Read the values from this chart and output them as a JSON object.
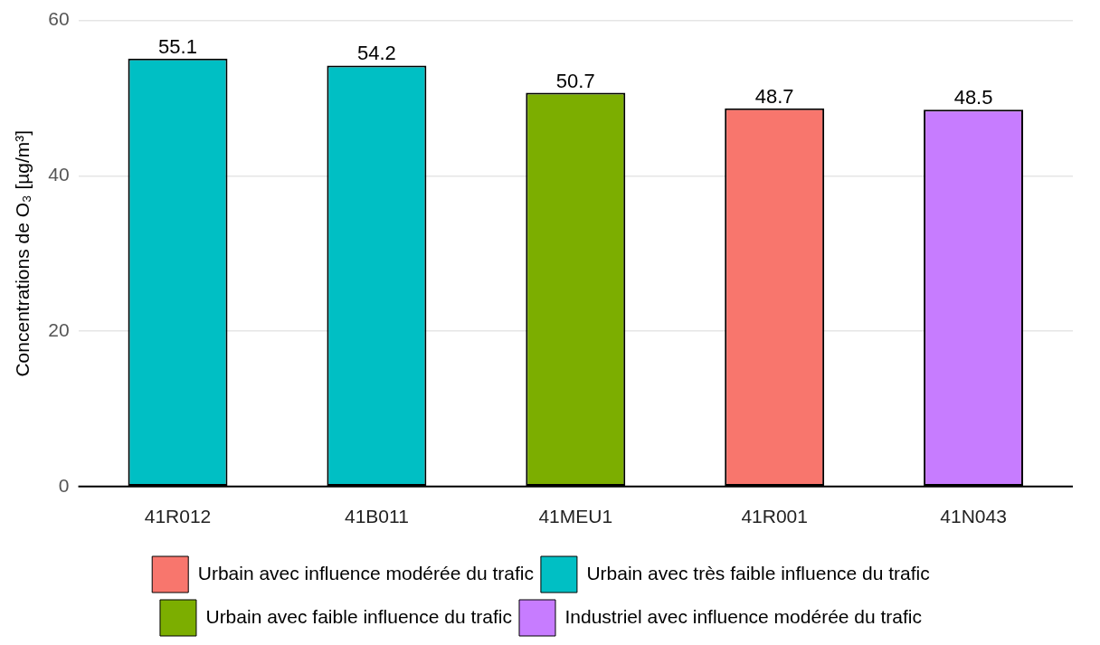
{
  "chart_data": {
    "type": "bar",
    "ylabel": "Concentrations de O₃ [µg/m³]",
    "categories": [
      "41R012",
      "41B011",
      "41MEU1",
      "41R001",
      "41N043"
    ],
    "stacked": true,
    "series": [
      {
        "name": "Urbain avec influence modérée du trafic",
        "color": "#f8766d",
        "values": [
          null,
          null,
          null,
          48.7,
          null
        ]
      },
      {
        "name": "Urbain avec très faible influence du trafic",
        "color": "#00bfc4",
        "values": [
          55.1,
          54.2,
          null,
          null,
          null
        ]
      },
      {
        "name": "Urbain avec faible influence du trafic",
        "color": "#7cae00",
        "values": [
          null,
          null,
          50.7,
          null,
          null
        ]
      },
      {
        "name": "Industriel avec influence modérée du trafic",
        "color": "#c77cff",
        "values": [
          null,
          null,
          null,
          null,
          48.5
        ]
      }
    ],
    "ylim": [
      0,
      60
    ],
    "yticks": [
      0,
      20,
      40,
      60
    ],
    "grid": "y",
    "legend": "bottom",
    "data_labels": true
  }
}
